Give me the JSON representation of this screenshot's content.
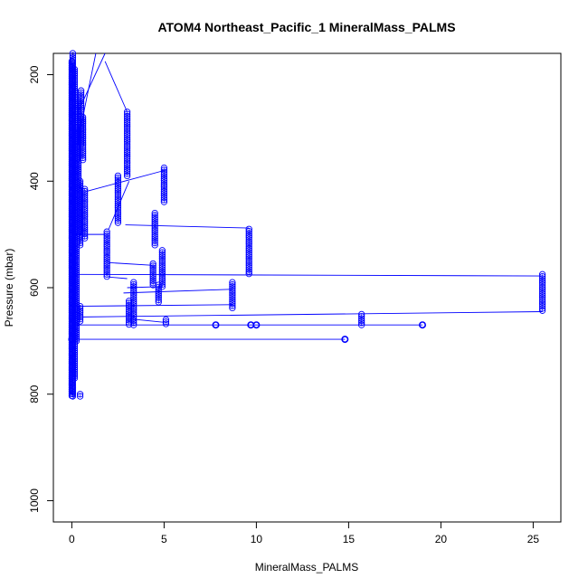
{
  "chart_data": {
    "type": "scatter",
    "title": "ATOM4 Northeast_Pacific_1 MineralMass_PALMS",
    "xlabel": "MineralMass_PALMS",
    "ylabel": "Pressure (mbar)",
    "xlim": [
      -1,
      26.5
    ],
    "ylim": [
      1040,
      160
    ],
    "y_reversed": true,
    "x_ticks": [
      0,
      5,
      10,
      15,
      20,
      25
    ],
    "y_ticks": [
      200,
      400,
      600,
      800,
      1000
    ],
    "grid": false,
    "series_color": "#0000ff",
    "marker": "open-circle",
    "columns": [
      {
        "x": 0.0,
        "p_min": 175,
        "p_max": 805
      },
      {
        "x": 0.05,
        "p_min": 160,
        "p_max": 805
      },
      {
        "x": 0.15,
        "p_min": 190,
        "p_max": 770
      },
      {
        "x": 0.25,
        "p_min": 300,
        "p_max": 700
      },
      {
        "x": 0.35,
        "p_min": 250,
        "p_max": 500
      },
      {
        "x": 0.45,
        "p_min": 400,
        "p_max": 520
      },
      {
        "x": 0.5,
        "p_min": 230,
        "p_max": 330
      },
      {
        "x": 0.6,
        "p_min": 280,
        "p_max": 360
      },
      {
        "x": 0.7,
        "p_min": 415,
        "p_max": 510
      },
      {
        "x": 0.45,
        "p_min": 635,
        "p_max": 665
      },
      {
        "x": 0.45,
        "p_min": 800,
        "p_max": 805
      },
      {
        "x": 1.9,
        "p_min": 495,
        "p_max": 580
      },
      {
        "x": 2.5,
        "p_min": 390,
        "p_max": 480
      },
      {
        "x": 3.0,
        "p_min": 270,
        "p_max": 390
      },
      {
        "x": 3.1,
        "p_min": 625,
        "p_max": 670
      },
      {
        "x": 3.35,
        "p_min": 590,
        "p_max": 670
      },
      {
        "x": 4.4,
        "p_min": 555,
        "p_max": 595
      },
      {
        "x": 4.5,
        "p_min": 460,
        "p_max": 520
      },
      {
        "x": 4.7,
        "p_min": 595,
        "p_max": 630
      },
      {
        "x": 4.9,
        "p_min": 530,
        "p_max": 600
      },
      {
        "x": 5.0,
        "p_min": 375,
        "p_max": 440
      },
      {
        "x": 5.1,
        "p_min": 660,
        "p_max": 670
      },
      {
        "x": 8.7,
        "p_min": 590,
        "p_max": 640
      },
      {
        "x": 9.6,
        "p_min": 490,
        "p_max": 575
      },
      {
        "x": 15.7,
        "p_min": 650,
        "p_max": 670
      },
      {
        "x": 25.5,
        "p_min": 575,
        "p_max": 645
      }
    ],
    "points": [
      {
        "x": 7.8,
        "y": 670
      },
      {
        "x": 9.7,
        "y": 670
      },
      {
        "x": 10.0,
        "y": 670
      },
      {
        "x": 19.0,
        "y": 670
      },
      {
        "x": 14.8,
        "y": 697
      },
      {
        "x": 0.0,
        "y": 697
      }
    ],
    "connectors": [
      {
        "x1": 0.0,
        "y1": 697,
        "x2": 14.8,
        "y2": 697
      },
      {
        "x1": 0.0,
        "y1": 670,
        "x2": 19.0,
        "y2": 670
      },
      {
        "x1": 0.6,
        "y1": 655,
        "x2": 25.5,
        "y2": 645
      },
      {
        "x1": 0.0,
        "y1": 575,
        "x2": 25.5,
        "y2": 578
      },
      {
        "x1": 0.0,
        "y1": 635,
        "x2": 8.7,
        "y2": 632
      },
      {
        "x1": 2.9,
        "y1": 482,
        "x2": 9.6,
        "y2": 488
      },
      {
        "x1": 2.8,
        "y1": 610,
        "x2": 8.7,
        "y2": 603
      },
      {
        "x1": 2.0,
        "y1": 553,
        "x2": 4.4,
        "y2": 558
      },
      {
        "x1": 3.0,
        "y1": 600,
        "x2": 4.9,
        "y2": 598
      },
      {
        "x1": 0.7,
        "y1": 420,
        "x2": 5.0,
        "y2": 380
      },
      {
        "x1": 2.0,
        "y1": 490,
        "x2": 3.1,
        "y2": 400
      },
      {
        "x1": 1.8,
        "y1": 175,
        "x2": 3.0,
        "y2": 270
      },
      {
        "x1": 0.4,
        "y1": 265,
        "x2": 1.8,
        "y2": 160
      },
      {
        "x1": 0.3,
        "y1": 330,
        "x2": 1.3,
        "y2": 160
      },
      {
        "x1": 0.0,
        "y1": 500,
        "x2": 1.8,
        "y2": 500
      },
      {
        "x1": 2.0,
        "y1": 580,
        "x2": 3.0,
        "y2": 583
      },
      {
        "x1": 3.0,
        "y1": 658,
        "x2": 5.0,
        "y2": 665
      },
      {
        "x1": 0.2,
        "y1": 410,
        "x2": 0.7,
        "y2": 415
      }
    ]
  }
}
